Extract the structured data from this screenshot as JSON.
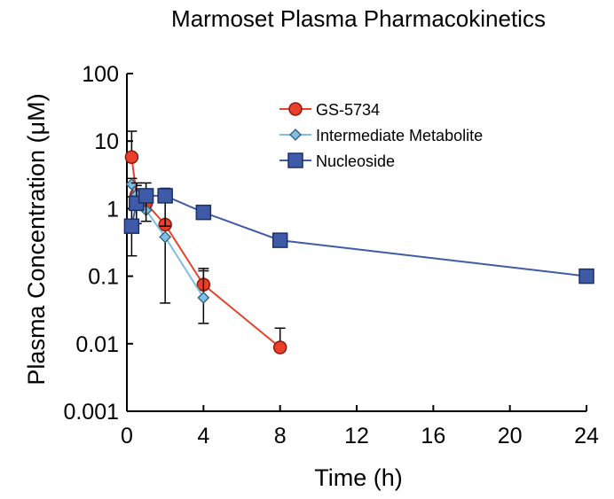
{
  "chart_data": {
    "type": "scatter",
    "title": "Marmoset Plasma Pharmacokinetics",
    "xlabel": "Time (h)",
    "ylabel": "Plasma Concentration (μM)",
    "xlim": [
      0,
      24
    ],
    "ylim": [
      0.001,
      100
    ],
    "yscale": "log",
    "xticks": [
      0,
      4,
      8,
      12,
      16,
      20,
      24
    ],
    "xtick_labels": [
      "0",
      "4",
      "8",
      "12",
      "16",
      "20",
      "24"
    ],
    "yticks": [
      0.001,
      0.01,
      0.1,
      1,
      10,
      100
    ],
    "ytick_labels": [
      "0.001",
      "0.01",
      "0.1",
      "1",
      "10",
      "100"
    ],
    "grid": false,
    "legend_position": "top-right",
    "series": [
      {
        "name": "GS-5734",
        "color": "#e8402a",
        "marker": "circle",
        "x": [
          0.25,
          0.5,
          1,
          2,
          4,
          8
        ],
        "y": [
          5.8,
          1.6,
          1.2,
          0.58,
          0.075,
          0.0088
        ],
        "err_upper": [
          14,
          2.2,
          null,
          null,
          0.13,
          0.017
        ]
      },
      {
        "name": "Intermediate Metabolite",
        "color": "#7fbfe6",
        "marker": "diamond",
        "x": [
          0.25,
          0.5,
          1,
          2,
          4
        ],
        "y": [
          2.3,
          1.6,
          0.95,
          0.38,
          0.048
        ],
        "err_upper": [
          2.8,
          null,
          1.4,
          null,
          0.12
        ],
        "err_lower": [
          null,
          null,
          null,
          0.04,
          0.02
        ]
      },
      {
        "name": "Nucleoside",
        "color": "#3f5ba8",
        "marker": "square",
        "x": [
          0.25,
          0.5,
          1,
          2,
          4,
          8,
          24
        ],
        "y": [
          0.55,
          1.2,
          1.55,
          1.55,
          0.88,
          0.34,
          0.1
        ],
        "err_upper": [
          1.5,
          2.4,
          2.4,
          2.0,
          null,
          null,
          null
        ],
        "err_lower": [
          0.2,
          0.6,
          0.65,
          0.55,
          null,
          null,
          null
        ]
      }
    ]
  }
}
